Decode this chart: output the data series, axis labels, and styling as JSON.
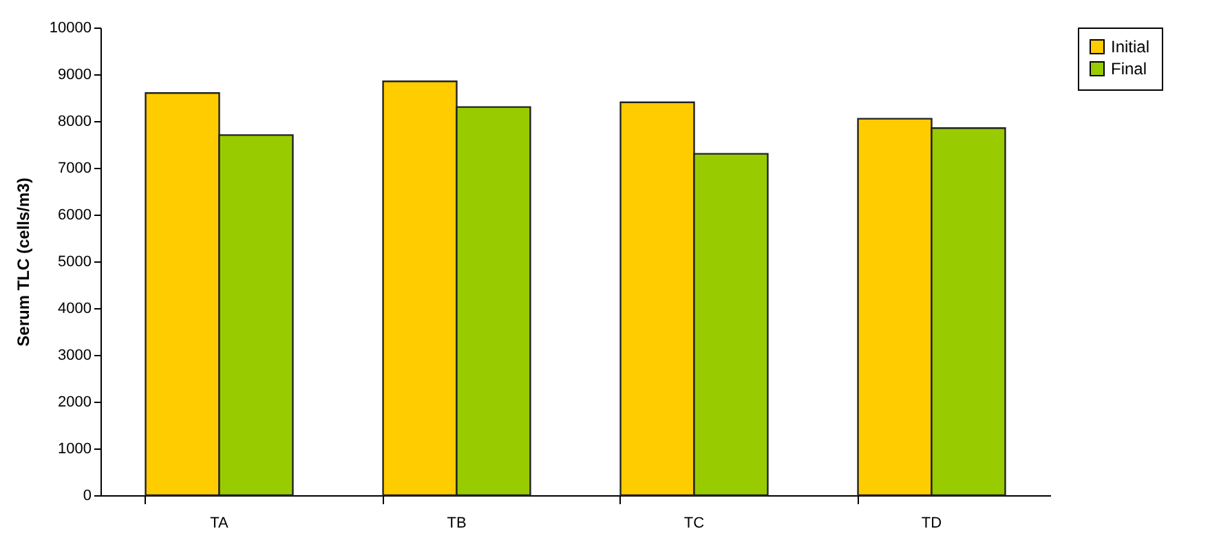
{
  "chart_data": {
    "type": "bar",
    "ylabel": "Serum TLC (cells/m3)",
    "categories": [
      "TA",
      "TB",
      "TC",
      "TD"
    ],
    "series": [
      {
        "name": "Initial",
        "color": "#ffcc00",
        "values": [
          8600,
          8850,
          8400,
          8050
        ]
      },
      {
        "name": "Final",
        "color": "#99cc00",
        "values": [
          7700,
          8300,
          7300,
          7850
        ]
      }
    ],
    "ylim": [
      0,
      10000
    ],
    "yticks": [
      0,
      1000,
      2000,
      3000,
      4000,
      5000,
      6000,
      7000,
      8000,
      9000,
      10000
    ],
    "grid": false,
    "legend": "right"
  }
}
